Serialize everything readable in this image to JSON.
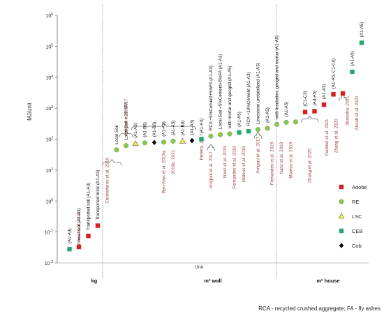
{
  "chart_data": {
    "type": "scatter",
    "title": "",
    "ylabel": "MJ/unit",
    "xlabel": "Unit",
    "yscale": "log",
    "ylim": [
      0.01,
      1000000
    ],
    "y_ticks": [
      {
        "v": 0.01,
        "b": "10",
        "e": "-2"
      },
      {
        "v": 0.1,
        "b": "10",
        "e": "-1"
      },
      {
        "v": 1,
        "b": "10",
        "e": "0"
      },
      {
        "v": 10,
        "b": "10",
        "e": "1"
      },
      {
        "v": 100,
        "b": "10",
        "e": "2"
      },
      {
        "v": 1000,
        "b": "10",
        "e": "3"
      },
      {
        "v": 10000,
        "b": "10",
        "e": "4"
      },
      {
        "v": 100000,
        "b": "10",
        "e": "5"
      },
      {
        "v": 1000000,
        "b": "10",
        "e": "6"
      }
    ],
    "categories": [
      "kg",
      "m² wall",
      "m² house"
    ],
    "legend": [
      {
        "name": "Adobe",
        "marker": "square",
        "color": "#d42020"
      },
      {
        "name": "RE",
        "marker": "circle",
        "color": "#8dc455"
      },
      {
        "name": "LSC",
        "marker": "triangle",
        "color": "#f2f04a"
      },
      {
        "name": "CEB",
        "marker": "square",
        "color": "#26a86c"
      },
      {
        "name": "Cob",
        "marker": "diamond",
        "color": "#000000"
      }
    ],
    "points": [
      {
        "i": 1,
        "type": "CEB",
        "y": 0.028,
        "label": "(A1-A3)"
      },
      {
        "i": 2,
        "type": "Adobe",
        "y": 0.033,
        "label": "local soil (A1-A3)"
      },
      {
        "i": 3,
        "type": "Adobe",
        "y": 0.075,
        "label": "Transported soil  (A1-A3)"
      },
      {
        "i": 4,
        "type": "Adobe",
        "y": 0.16,
        "label": "Transported brick  (A1-A3)"
      },
      {
        "i": 6,
        "type": "RE",
        "y": 45,
        "label": "Local Soil"
      },
      {
        "i": 7,
        "type": "RE",
        "y": 62,
        "label": "Local Soil + 25%FA"
      },
      {
        "i": 8,
        "type": "LSC",
        "y": 72,
        "label": "(A1-A3)"
      },
      {
        "i": 9,
        "type": "RE",
        "y": 76,
        "label": "(A1-B6)"
      },
      {
        "i": 10,
        "type": "Cob",
        "y": 78,
        "label": "(A1-B6)"
      },
      {
        "i": 11,
        "type": "RE",
        "y": 80,
        "label": "(A1-A3)"
      },
      {
        "i": 12,
        "type": "RE",
        "y": 86,
        "label": "(A1-A3)"
      },
      {
        "i": 13,
        "type": "LSC",
        "y": 86,
        "label": "(A1-B6)"
      },
      {
        "i": 14,
        "type": "Cob",
        "y": 90,
        "label": "(A1-A3)"
      },
      {
        "i": 15,
        "type": "CEB",
        "y": 100,
        "label": "(A1-A3)"
      },
      {
        "i": 16,
        "type": "RE",
        "y": 125,
        "label": "RCA +5%Cement+5%FA (A1-A3)"
      },
      {
        "i": 17,
        "type": "RE",
        "y": 140,
        "label": "Local Soil +5%Cement+5%FA (A1-A3)"
      },
      {
        "i": 18,
        "type": "RE",
        "y": 148,
        "label": "with mortar and geogrid (A1-A5)"
      },
      {
        "i": 19,
        "type": "CEB",
        "y": 165,
        "label": "(A1-A5)"
      },
      {
        "i": 20,
        "type": "CEB",
        "y": 180,
        "label": "RCA +10%Cement (A1-A3)"
      },
      {
        "i": 21,
        "type": "RE",
        "y": 205,
        "label": "Limestone unstabilized (A1-A3)"
      },
      {
        "i": 22,
        "type": "RE",
        "y": 225,
        "label": "(A1-A5)"
      },
      {
        "i": 23,
        "type": "RE",
        "y": 300,
        "label": "with insulation, geogrid and mortar (A1-A5)"
      },
      {
        "i": 24,
        "type": "RE",
        "y": 350,
        "label": "(A1-A5)"
      },
      {
        "i": 25,
        "type": "RE",
        "y": 360,
        "label": ""
      },
      {
        "i": 26,
        "type": "Adobe",
        "y": 750,
        "label": "(C1-C3)"
      },
      {
        "i": 27,
        "type": "Adobe",
        "y": 800,
        "label": "(A4-A5)"
      },
      {
        "i": 28,
        "type": "Adobe",
        "y": 1300,
        "label": "(A1-A3)"
      },
      {
        "i": 29,
        "type": "Adobe",
        "y": 2800,
        "label": "(A1-A5, C1-C4)"
      },
      {
        "i": 30,
        "type": "Adobe",
        "y": 3000,
        "label": ""
      },
      {
        "i": 31,
        "type": "CEB",
        "y": 15000,
        "label": "(A1-A5)"
      },
      {
        "i": 32,
        "type": "CEB",
        "y": 130000,
        "label": "(A1-A5)"
      }
    ],
    "references": [
      {
        "text": "Cabrera et al. 2020",
        "x": 2
      },
      {
        "text": "Christoforou et al. 2016",
        "x": 5
      },
      {
        "text": "Arrigoni et al. 2017",
        "x": 7
      },
      {
        "text": "Ben-Alon et al. 2019a,",
        "x": 11
      },
      {
        "text": "2019b, 2021",
        "x": 12
      },
      {
        "text": "Pereira, 2017",
        "x": 15
      },
      {
        "text": "Arrigoni et al. 2017",
        "x": 16
      },
      {
        "text": "Nanz et al. 2019",
        "x": 17.5
      },
      {
        "text": "Fernandes et al. 2019",
        "x": 18.5
      },
      {
        "text": "Mateus et al. 2019",
        "x": 19.5
      },
      {
        "text": "Arrigoni et al. 2017",
        "x": 21
      },
      {
        "text": "Fernandes et al. 2019",
        "x": 22.5
      },
      {
        "text": "Nanz et al. 2019",
        "x": 23.5
      },
      {
        "text": "Mateus et al. 2019",
        "x": 24.5
      },
      {
        "text": "Zhang et al. 2020",
        "x": 26.5
      },
      {
        "text": "Packkel et al. 2021",
        "x": 28.3
      },
      {
        "text": "Zhang et al. 2020",
        "x": 29.3
      },
      {
        "text": "Shrestha, 2021",
        "x": 30.5
      },
      {
        "text": "Ansah et al. 2020",
        "x": 31.5
      }
    ],
    "footnote": "RCA - recycled crushed aggregate; FA - fly ashes"
  }
}
